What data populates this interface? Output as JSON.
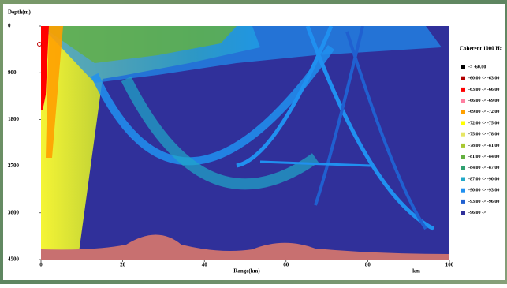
{
  "chart_data": {
    "type": "heatmap",
    "title": "Coherent   1000 Hz",
    "xlabel": "Range(km)",
    "xunit": "km",
    "ylabel": "Depth(m)",
    "xlim": [
      0,
      100
    ],
    "xticks": [
      0,
      20,
      40,
      60,
      80,
      100
    ],
    "ylim": [
      0,
      4500
    ],
    "yticks": [
      0,
      900,
      1800,
      2700,
      3600,
      4500
    ],
    "y_inverted": true,
    "legend": [
      {
        "label": "-> -60.00",
        "color": "#000000"
      },
      {
        "label": "-60.00 -> -63.00",
        "color": "#b00000"
      },
      {
        "label": "-63.00 -> -66.00",
        "color": "#ff0000"
      },
      {
        "label": "-66.00 -> -69.00",
        "color": "#ff7fa0"
      },
      {
        "label": "-69.00 -> -72.00",
        "color": "#ffa000"
      },
      {
        "label": "-72.00 -> -75.00",
        "color": "#ffff00"
      },
      {
        "label": "-75.00 -> -78.00",
        "color": "#e6e664"
      },
      {
        "label": "-78.00 -> -81.00",
        "color": "#a8c830"
      },
      {
        "label": "-81.00 -> -84.00",
        "color": "#64b040"
      },
      {
        "label": "-84.00 -> -87.00",
        "color": "#30a070"
      },
      {
        "label": "-87.00 -> -90.00",
        "color": "#20a8c8"
      },
      {
        "label": "-90.00 -> -93.00",
        "color": "#2090f0"
      },
      {
        "label": "-93.00 -> -96.00",
        "color": "#2060d0"
      },
      {
        "label": "-96.00 ->",
        "color": "#30309a"
      }
    ]
  }
}
